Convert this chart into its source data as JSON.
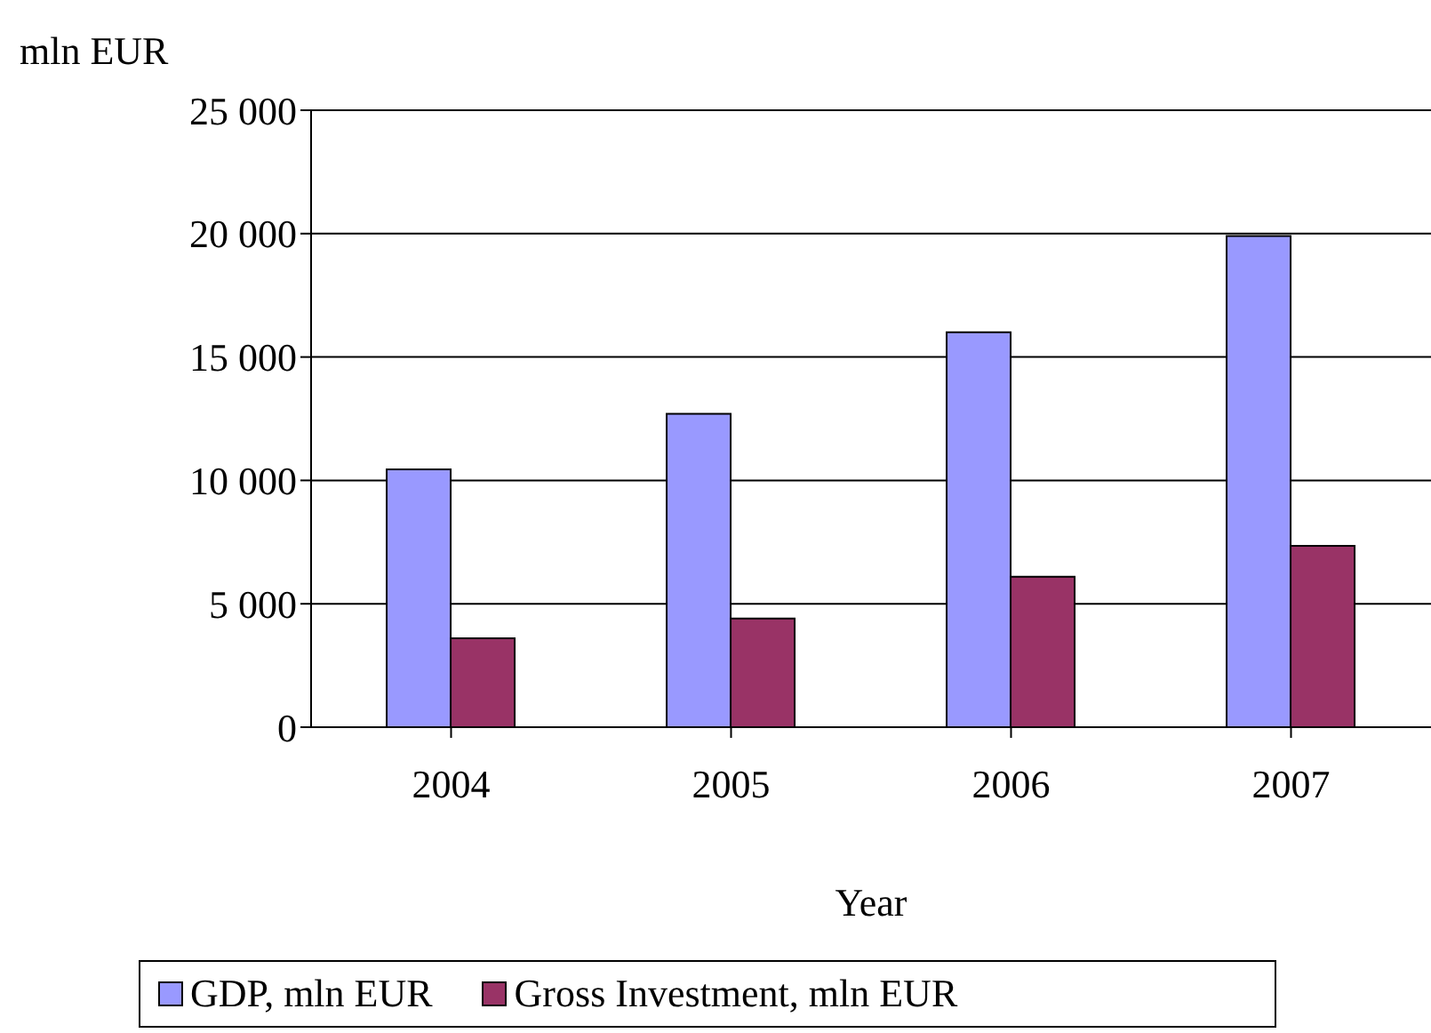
{
  "chart_data": {
    "type": "bar",
    "ylabel": "mln EUR",
    "xlabel": "Year",
    "categories": [
      "2004",
      "2005",
      "2006",
      "2007"
    ],
    "series": [
      {
        "name": "GDP, mln EUR",
        "color": "#9999ff",
        "values": [
          10450,
          12700,
          16000,
          19900
        ]
      },
      {
        "name": "Gross Investment, mln EUR",
        "color": "#993366",
        "values": [
          3600,
          4400,
          6100,
          7350
        ]
      }
    ],
    "ylim": [
      0,
      25000
    ],
    "yticks": [
      {
        "value": 0,
        "label": "0"
      },
      {
        "value": 5000,
        "label": "5 000"
      },
      {
        "value": 10000,
        "label": "10 000"
      },
      {
        "value": 15000,
        "label": "15 000"
      },
      {
        "value": 20000,
        "label": "20 000"
      },
      {
        "value": 25000,
        "label": "25 000"
      }
    ],
    "grid": "y",
    "legend": "bottom"
  }
}
